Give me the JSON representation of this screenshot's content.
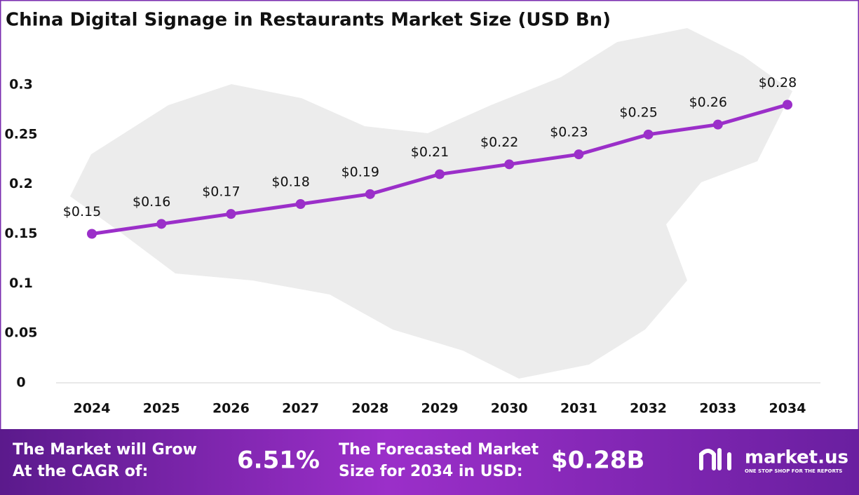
{
  "chart_data": {
    "type": "line",
    "title": "China Digital Signage in Restaurants Market Size (USD Bn)",
    "categories": [
      "2024",
      "2025",
      "2026",
      "2027",
      "2028",
      "2029",
      "2030",
      "2031",
      "2032",
      "2033",
      "2034"
    ],
    "series": [
      {
        "name": "Market Size",
        "color": "#9b2fc9",
        "values": [
          0.15,
          0.16,
          0.17,
          0.18,
          0.19,
          0.21,
          0.22,
          0.23,
          0.25,
          0.26,
          0.28
        ],
        "value_labels": [
          "$0.15",
          "$0.16",
          "$0.17",
          "$0.18",
          "$0.19",
          "$0.21",
          "$0.22",
          "$0.23",
          "$0.25",
          "$0.26",
          "$0.28"
        ]
      }
    ],
    "ylim": [
      0,
      0.3
    ],
    "yticks": [
      0,
      0.05,
      0.1,
      0.15,
      0.2,
      0.25,
      0.3
    ],
    "grid": false
  },
  "footer": {
    "cagr_text_1": "The Market will Grow",
    "cagr_text_2": "At the CAGR of:",
    "cagr_value": "6.51%",
    "forecast_text_1": "The Forecasted Market",
    "forecast_text_2": "Size for 2034 in USD:",
    "forecast_value": "$0.28B",
    "logo": "market.us",
    "tagline": "ONE STOP SHOP FOR THE REPORTS"
  }
}
